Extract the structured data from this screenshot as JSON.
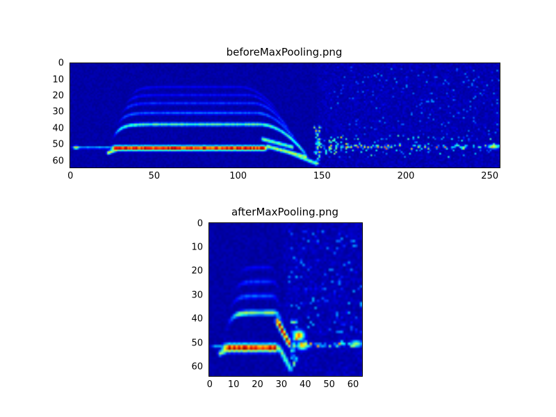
{
  "colors": {
    "background": "#ffffff",
    "text": "#000000"
  },
  "chart_data": [
    {
      "type": "heatmap",
      "title": "beforeMaxPooling.png",
      "colormap": "jet",
      "rows": 64,
      "cols": 256,
      "x_range": [
        0,
        255
      ],
      "y_range": [
        0,
        63
      ],
      "xticks": [
        0,
        50,
        100,
        150,
        200,
        250
      ],
      "yticks": [
        0,
        10,
        20,
        30,
        40,
        50,
        60
      ],
      "grid": false,
      "seed": 11,
      "base_value": 0.02,
      "base_noise": 0.035,
      "rise_tau": 4,
      "features": [
        {
          "kind": "noise_region",
          "r0": 0,
          "r1": 64,
          "c0": 147,
          "c1": 256,
          "density": 1.0,
          "vmin": 0.0,
          "vmax": 0.085
        },
        {
          "kind": "noise_region",
          "r0": 2,
          "r1": 48,
          "c0": 150,
          "c1": 256,
          "density": 0.045,
          "vmin": 0.1,
          "vmax": 0.28
        },
        {
          "kind": "noise_region",
          "r0": 44,
          "r1": 58,
          "c0": 148,
          "c1": 256,
          "density": 0.06,
          "vmin": 0.15,
          "vmax": 0.45
        },
        {
          "kind": "noise_region",
          "r0": 45,
          "r1": 56,
          "c0": 148,
          "c1": 166,
          "density": 0.22,
          "vmin": 0.2,
          "vmax": 0.65
        },
        {
          "kind": "hband",
          "row": 51.3,
          "thickness": 1.0,
          "c0": 0,
          "c1": 25,
          "value": 0.36
        },
        {
          "kind": "blob",
          "row": 51.2,
          "col": 3,
          "rsigma": 0.7,
          "csigma": 1.3,
          "value": 0.7
        },
        {
          "kind": "hband",
          "row": 51.6,
          "thickness": 2.2,
          "c0": 24,
          "c1": 117,
          "value": 0.98
        },
        {
          "kind": "diag",
          "r0": 54.5,
          "c0": 22,
          "r1": 52,
          "c1": 29,
          "value": 0.6,
          "sigma": 0.8
        },
        {
          "kind": "curve",
          "plateau": 37,
          "onset": 24,
          "flat_end": 112,
          "fall_end": 141,
          "fall_row": 57,
          "value": 0.45,
          "sigma": 0.8
        },
        {
          "kind": "curve",
          "plateau": 30,
          "onset": 26,
          "flat_end": 110,
          "fall_end": 136,
          "fall_row": 50,
          "value": 0.22,
          "sigma": 0.8
        },
        {
          "kind": "curve",
          "plateau": 24,
          "onset": 28,
          "flat_end": 108,
          "fall_end": 132,
          "fall_row": 44,
          "value": 0.17,
          "sigma": 0.8
        },
        {
          "kind": "curve",
          "plateau": 19,
          "onset": 30,
          "flat_end": 105,
          "fall_end": 128,
          "fall_row": 38,
          "value": 0.13,
          "sigma": 0.8
        },
        {
          "kind": "curve",
          "plateau": 14,
          "onset": 33,
          "flat_end": 100,
          "fall_end": 124,
          "fall_row": 30,
          "value": 0.11,
          "sigma": 0.8
        },
        {
          "kind": "diag",
          "r0": 46,
          "c0": 114,
          "r1": 51,
          "c1": 132,
          "value": 0.5,
          "sigma": 0.9
        },
        {
          "kind": "diag",
          "r0": 50.5,
          "c0": 117,
          "r1": 57,
          "c1": 140,
          "value": 0.58,
          "sigma": 0.9
        },
        {
          "kind": "diag",
          "r0": 53,
          "c0": 127,
          "r1": 61,
          "c1": 146,
          "value": 0.5,
          "sigma": 0.9
        },
        {
          "kind": "vburst",
          "col": 147,
          "r0": 38,
          "r1": 62,
          "count": 34,
          "vmin": 0.25,
          "vmax": 0.8,
          "csigma": 2.2
        },
        {
          "kind": "speckle_row",
          "row": 50.8,
          "c0": 148,
          "c1": 256,
          "density": 0.55,
          "vmin": 0.2,
          "vmax": 0.82,
          "spread": 1.4
        },
        {
          "kind": "blob",
          "row": 50.6,
          "col": 252,
          "rsigma": 1.0,
          "csigma": 2.4,
          "value": 0.6
        }
      ]
    },
    {
      "type": "heatmap",
      "title": "afterMaxPooling.png",
      "colormap": "jet",
      "rows": 64,
      "cols": 64,
      "x_range": [
        0,
        63
      ],
      "y_range": [
        0,
        63
      ],
      "xticks": [
        0,
        10,
        20,
        30,
        40,
        50,
        60
      ],
      "yticks": [
        0,
        10,
        20,
        30,
        40,
        50,
        60
      ],
      "grid": false,
      "seed": 23,
      "base_value": 0.02,
      "base_noise": 0.035,
      "rise_tau": 2,
      "features": [
        {
          "kind": "noise_region",
          "r0": 0,
          "r1": 64,
          "c0": 31,
          "c1": 64,
          "density": 1.0,
          "vmin": 0.0,
          "vmax": 0.085
        },
        {
          "kind": "noise_region",
          "r0": 3,
          "r1": 46,
          "c0": 33,
          "c1": 64,
          "density": 0.07,
          "vmin": 0.1,
          "vmax": 0.3
        },
        {
          "kind": "speckle_row",
          "row": 27,
          "c0": 34,
          "c1": 58,
          "density": 0.18,
          "vmin": 0.1,
          "vmax": 0.25,
          "spread": 1.0
        },
        {
          "kind": "hband",
          "row": 51.2,
          "thickness": 0.9,
          "c0": 0,
          "c1": 6,
          "value": 0.34
        },
        {
          "kind": "hband",
          "row": 51.7,
          "thickness": 2.4,
          "c0": 5,
          "c1": 29,
          "value": 0.97
        },
        {
          "kind": "diag",
          "r0": 54,
          "c0": 4,
          "r1": 52.2,
          "c1": 8,
          "value": 0.55,
          "sigma": 0.8
        },
        {
          "kind": "curve",
          "plateau": 37,
          "onset": 6,
          "flat_end": 27,
          "fall_end": 30,
          "fall_row": 41,
          "value": 0.5,
          "sigma": 0.8
        },
        {
          "kind": "curve",
          "plateau": 30,
          "onset": 7,
          "flat_end": 26,
          "fall_end": 29,
          "fall_row": 34,
          "value": 0.22,
          "sigma": 0.8
        },
        {
          "kind": "curve",
          "plateau": 24,
          "onset": 8,
          "flat_end": 26,
          "fall_end": 29,
          "fall_row": 28,
          "value": 0.17,
          "sigma": 0.8
        },
        {
          "kind": "curve",
          "plateau": 18,
          "onset": 9,
          "flat_end": 25,
          "fall_end": 28,
          "fall_row": 22,
          "value": 0.12,
          "sigma": 0.8
        },
        {
          "kind": "diag",
          "r0": 40.5,
          "c0": 28,
          "r1": 50,
          "c1": 33,
          "value": 0.92,
          "sigma": 1.0
        },
        {
          "kind": "diag",
          "r0": 52,
          "c0": 29,
          "r1": 60.5,
          "c1": 33.5,
          "value": 0.5,
          "sigma": 0.9
        },
        {
          "kind": "vburst",
          "col": 35,
          "r0": 40,
          "r1": 60,
          "count": 20,
          "vmin": 0.25,
          "vmax": 0.8,
          "csigma": 1.3
        },
        {
          "kind": "blob",
          "row": 46.5,
          "col": 37,
          "rsigma": 1.5,
          "csigma": 1.6,
          "value": 0.8
        },
        {
          "kind": "blob",
          "row": 50.8,
          "col": 38.5,
          "rsigma": 1.2,
          "csigma": 1.6,
          "value": 0.7
        },
        {
          "kind": "speckle_row",
          "row": 50.3,
          "c0": 36,
          "c1": 64,
          "density": 0.7,
          "vmin": 0.25,
          "vmax": 0.75,
          "spread": 1.2
        },
        {
          "kind": "blob",
          "row": 50,
          "col": 61,
          "rsigma": 1.0,
          "csigma": 1.8,
          "value": 0.55
        }
      ]
    }
  ]
}
